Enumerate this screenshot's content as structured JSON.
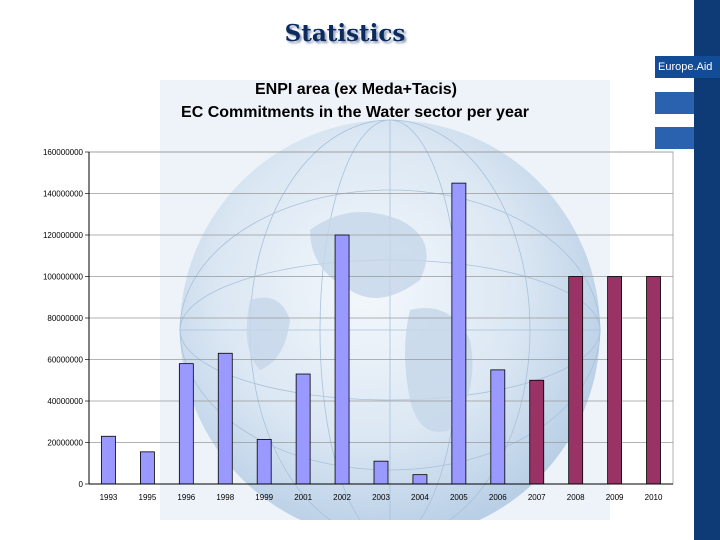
{
  "slide": {
    "title": "Statistics",
    "brand": "Europe.Aid"
  },
  "colors": {
    "pre_2007": "#9999ff",
    "from_2007": "#993366",
    "title_navy": "#0d2a5c",
    "band_navy": "#0e3a75"
  },
  "chart_data": {
    "type": "bar",
    "title": "ENPI area (ex Meda+Tacis)",
    "subtitle": "EC Commitments in the Water sector per year",
    "categories": [
      "1993",
      "1995",
      "1996",
      "1998",
      "1999",
      "2001",
      "2002",
      "2003",
      "2004",
      "2005",
      "2006",
      "2007",
      "2008",
      "2009",
      "2010"
    ],
    "values": [
      23000000,
      15500000,
      58000000,
      63000000,
      21500000,
      53000000,
      120000000,
      11000000,
      4500000,
      145000000,
      55000000,
      50000000,
      100000000,
      100000000,
      100000000
    ],
    "bar_colors": [
      "#9999ff",
      "#9999ff",
      "#9999ff",
      "#9999ff",
      "#9999ff",
      "#9999ff",
      "#9999ff",
      "#9999ff",
      "#9999ff",
      "#9999ff",
      "#9999ff",
      "#993366",
      "#993366",
      "#993366",
      "#993366"
    ],
    "yticks": [
      "0",
      "20000000",
      "40000000",
      "60000000",
      "80000000",
      "100000000",
      "120000000",
      "140000000",
      "160000000"
    ],
    "ylim": [
      0,
      160000000
    ],
    "xlabel": "",
    "ylabel": "",
    "grid": true,
    "legend": "none"
  }
}
